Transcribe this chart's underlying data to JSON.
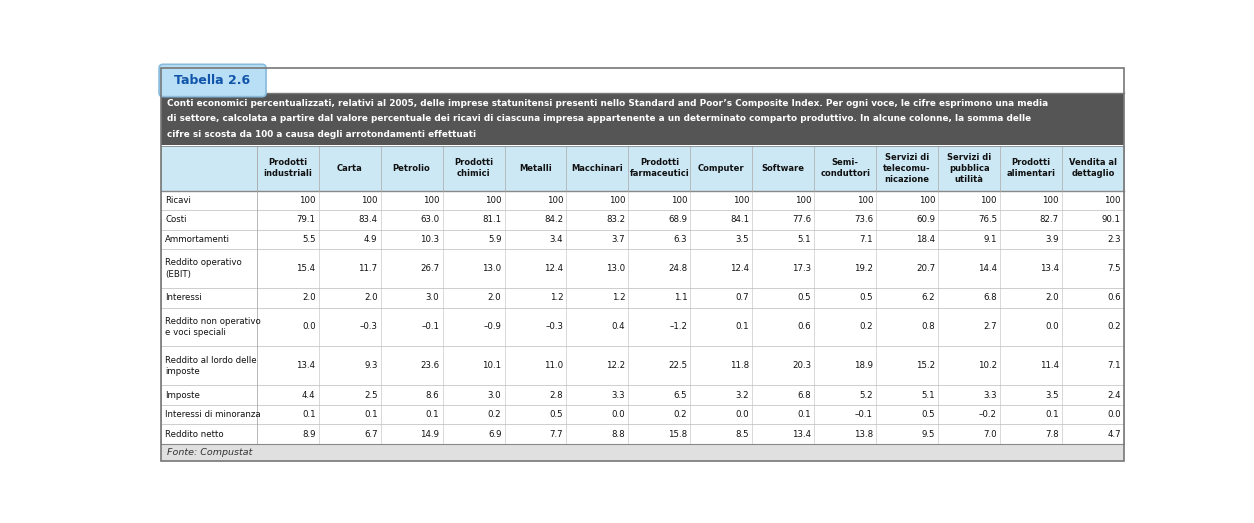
{
  "title_tab": "Tabella 2.6",
  "description_lines": [
    "Conti economici percentualizzati, relativi al 2005, delle imprese statunitensi presenti nello Standard and Poor’s Composite Index. Per ogni voce, le cifre esprimono una media",
    "di settore, calcolata a partire dal valore percentuale dei ricavi di ciascuna impresa appartenente a un determinato comparto produttivo. In alcune colonne, la somma delle",
    "cifre si scosta da 100 a causa degli arrotondamenti effettuati"
  ],
  "col_headers": [
    "Prodotti\nindustriali",
    "Carta",
    "Petrolio",
    "Prodotti\nchimici",
    "Metalli",
    "Macchinari",
    "Prodotti\nfarmaceutici",
    "Computer",
    "Software",
    "Semi-\nconduttori",
    "Servizi di\ntelecomu-\nnicazione",
    "Servizi di\npubblica\nutilità",
    "Prodotti\nalimentari",
    "Vendita al\ndettaglio"
  ],
  "row_headers": [
    "Ricavi",
    "Costi",
    "Ammortamenti",
    "Reddito operativo\n(EBIT)",
    "Interessi",
    "Reddito non operativo\ne voci speciali",
    "Reddito al lordo delle\nimposte",
    "Imposte",
    "Interessi di minoranza",
    "Reddito netto"
  ],
  "data_str_vals": [
    [
      "100",
      "100",
      "100",
      "100",
      "100",
      "100",
      "100",
      "100",
      "100",
      "100",
      "100",
      "100",
      "100",
      "100"
    ],
    [
      "79.1",
      "83.4",
      "63.0",
      "81.1",
      "84.2",
      "83.2",
      "68.9",
      "84.1",
      "77.6",
      "73.6",
      "60.9",
      "76.5",
      "82.7",
      "90.1"
    ],
    [
      "5.5",
      "4.9",
      "10.3",
      "5.9",
      "3.4",
      "3.7",
      "6.3",
      "3.5",
      "5.1",
      "7.1",
      "18.4",
      "9.1",
      "3.9",
      "2.3"
    ],
    [
      "15.4",
      "11.7",
      "26.7",
      "13.0",
      "12.4",
      "13.0",
      "24.8",
      "12.4",
      "17.3",
      "19.2",
      "20.7",
      "14.4",
      "13.4",
      "7.5"
    ],
    [
      "2.0",
      "2.0",
      "3.0",
      "2.0",
      "1.2",
      "1.2",
      "1.1",
      "0.7",
      "0.5",
      "0.5",
      "6.2",
      "6.8",
      "2.0",
      "0.6"
    ],
    [
      "0.0",
      "–0.3",
      "–0.1",
      "–0.9",
      "–0.3",
      "0.4",
      "–1.2",
      "0.1",
      "0.6",
      "0.2",
      "0.8",
      "2.7",
      "0.0",
      "0.2"
    ],
    [
      "13.4",
      "9.3",
      "23.6",
      "10.1",
      "11.0",
      "12.2",
      "22.5",
      "11.8",
      "20.3",
      "18.9",
      "15.2",
      "10.2",
      "11.4",
      "7.1"
    ],
    [
      "4.4",
      "2.5",
      "8.6",
      "3.0",
      "2.8",
      "3.3",
      "6.5",
      "3.2",
      "6.8",
      "5.2",
      "5.1",
      "3.3",
      "3.5",
      "2.4"
    ],
    [
      "0.1",
      "0.1",
      "0.1",
      "0.2",
      "0.5",
      "0.0",
      "0.2",
      "0.0",
      "0.1",
      "–0.1",
      "0.5",
      "–0.2",
      "0.1",
      "0.0"
    ],
    [
      "8.9",
      "6.7",
      "14.9",
      "6.9",
      "7.7",
      "8.8",
      "15.8",
      "8.5",
      "13.4",
      "13.8",
      "9.5",
      "7.0",
      "7.8",
      "4.7"
    ]
  ],
  "fonte": "Fonte: Compustat",
  "color_tab_bg": "#b8dff5",
  "color_tab_text": "#1155aa",
  "color_header_bg": "#cce8f5",
  "color_desc_bg": "#555555",
  "color_desc_text": "#ffffff",
  "color_footer_bg": "#e0e0e0",
  "color_row_light": "#ddeef8",
  "color_white": "#ffffff"
}
